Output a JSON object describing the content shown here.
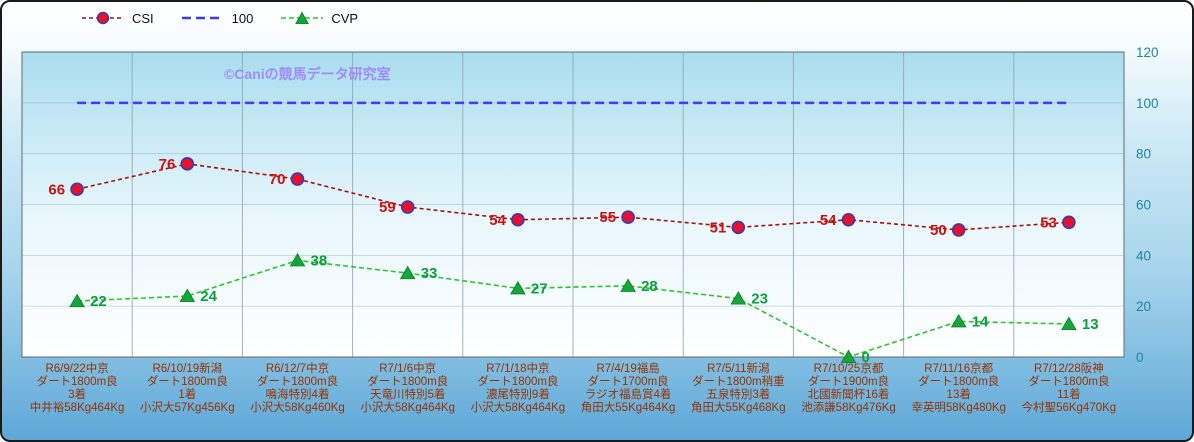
{
  "watermark": "©Caniの競馬データ研究室",
  "legend": [
    {
      "label": "CSI",
      "line_color": "#a61111",
      "dash": "4 3",
      "line_width": 1.6,
      "marker": "circle",
      "marker_fill": "#e8112d",
      "marker_stroke": "#3a3ab0"
    },
    {
      "label": "100",
      "line_color": "#3b3bff",
      "dash": "9 5",
      "line_width": 2.4,
      "marker": "none"
    },
    {
      "label": "CVP",
      "line_color": "#2fc52f",
      "dash": "5 3",
      "line_width": 1.6,
      "marker": "triangle",
      "marker_fill": "#17a53a",
      "marker_stroke": "#0f8a2c"
    }
  ],
  "chart_data": {
    "type": "line",
    "title": "",
    "legend_position": "top",
    "grid": true,
    "y_axis": {
      "min": 0,
      "max": 120,
      "step": 20,
      "side": "right",
      "ticks": [
        0,
        20,
        40,
        60,
        80,
        100,
        120
      ]
    },
    "categories": [
      {
        "lines": [
          "R6/9/22中京",
          "ダート1800m良",
          "3着",
          "中井裕58Kg464Kg"
        ]
      },
      {
        "lines": [
          "R6/10/19新潟",
          "ダート1800m良",
          "1着",
          "小沢大57Kg456Kg"
        ]
      },
      {
        "lines": [
          "R6/12/7中京",
          "ダート1800m良",
          "鳴海特別4着",
          "小沢大58Kg460Kg"
        ]
      },
      {
        "lines": [
          "R7/1/6中京",
          "ダート1800m良",
          "天竜川特別5着",
          "小沢大58Kg464Kg"
        ]
      },
      {
        "lines": [
          "R7/1/18中京",
          "ダート1800m良",
          "濃尾特別9着",
          "小沢大58Kg464Kg"
        ]
      },
      {
        "lines": [
          "R7/4/19福島",
          "ダート1700m良",
          "ラジオ福島賞4着",
          "角田大55Kg464Kg"
        ]
      },
      {
        "lines": [
          "R7/5/11新潟",
          "ダート1800m稍重",
          "五泉特別3着",
          "角田大55Kg468Kg"
        ]
      },
      {
        "lines": [
          "R7/10/25京都",
          "ダート1900m良",
          "北國新聞杯16着",
          "池添謙58Kg476Kg"
        ]
      },
      {
        "lines": [
          "R7/11/16京都",
          "ダート1800m良",
          "13着",
          "幸英明58Kg480Kg"
        ]
      },
      {
        "lines": [
          "R7/12/28阪神",
          "ダート1800m良",
          "11着",
          "今村聖56Kg470Kg"
        ]
      }
    ],
    "series": [
      {
        "name": "CSI",
        "values": [
          66,
          76,
          70,
          59,
          54,
          55,
          51,
          54,
          50,
          53
        ],
        "line_color": "#a61111",
        "dash": "4 3",
        "line_width": 1.6,
        "marker": "circle",
        "marker_fill": "#e8112d",
        "marker_stroke": "#3a3ab0",
        "label_color": "#cc1111",
        "label_side": "left"
      },
      {
        "name": "100",
        "values": [
          100,
          100,
          100,
          100,
          100,
          100,
          100,
          100,
          100,
          100
        ],
        "line_color": "#3b3bff",
        "dash": "9 5",
        "line_width": 2.5,
        "marker": "none"
      },
      {
        "name": "CVP",
        "values": [
          22,
          24,
          38,
          33,
          27,
          28,
          23,
          0,
          14,
          13
        ],
        "line_color": "#2fc52f",
        "dash": "5 3",
        "line_width": 1.6,
        "marker": "triangle",
        "marker_fill": "#17a53a",
        "marker_stroke": "#0f8a2c",
        "label_color": "#0aa03c",
        "label_side": "right"
      }
    ],
    "colors": {
      "plot_top": "#a9ddef",
      "plot_mid": "#e9f7fc",
      "plot_bottom": "#ffffff",
      "grid": "#8fa6b2",
      "plot_border": "#5f6b73",
      "y_tick_text": "#1f86a0",
      "x_tick_text": "#993300",
      "watermark": "#9f8cf5",
      "card_top": "#ffffff",
      "card_mid": "#a6d4ec",
      "card_bottom": "#5ea8d8"
    }
  }
}
